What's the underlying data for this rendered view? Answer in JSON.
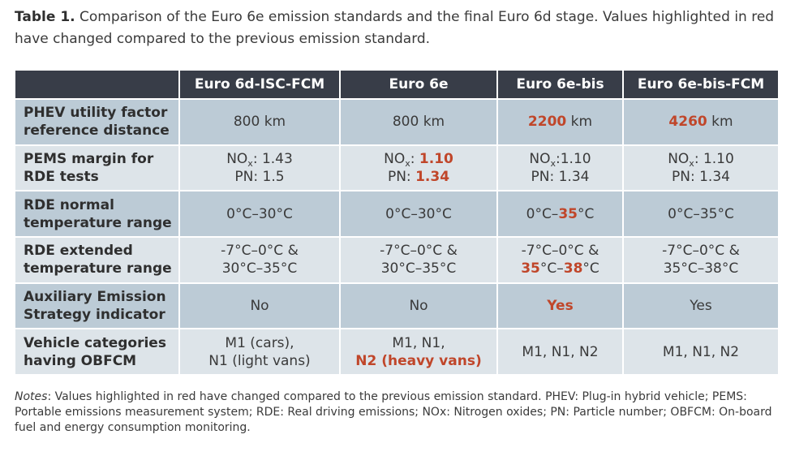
{
  "caption": {
    "label": "Table 1.",
    "text": " Comparison of the Euro 6e emission standards and the final Euro 6d stage. Values highlighted in red have changed compared to the previous emission standard."
  },
  "table": {
    "headers": [
      "",
      "Euro 6d-ISC-FCM",
      "Euro 6e",
      "Euro 6e-bis",
      "Euro 6e-bis-FCM"
    ],
    "rows": {
      "utility": {
        "label_line1": "PHEV utility factor",
        "label_line2": "reference distance",
        "c1": "800 km",
        "c2": "800 km",
        "c3_red": "2200",
        "c3_rest": " km",
        "c4_red": "4260",
        "c4_rest": " km"
      },
      "pems": {
        "label_line1": "PEMS margin for",
        "label_line2": "RDE tests",
        "nox_prefix": "NO",
        "nox_sub": "x",
        "c1_nox": ": 1.43",
        "c1_pn": "PN: 1.5",
        "c2_nox_sep": ": ",
        "c2_nox_red": "1.10",
        "c2_pn_label": "PN: ",
        "c2_pn_red": "1.34",
        "c3_nox": ":1.10",
        "c3_pn": "PN: 1.34",
        "c4_nox": ": 1.10",
        "c4_pn": "PN: 1.34"
      },
      "normal_temp": {
        "label_line1": "RDE normal",
        "label_line2": "temperature range",
        "c1": "0°C–30°C",
        "c2": "0°C–30°C",
        "c3_pre": "0°C–",
        "c3_red": "35",
        "c3_post": "°C",
        "c4": "0°C–35°C"
      },
      "extended_temp": {
        "label_line1": "RDE extended",
        "label_line2": "temperature range",
        "c1_line1": "-7°C–0°C &",
        "c1_line2": "30°C–35°C",
        "c2_line1": "-7°C–0°C &",
        "c2_line2": "30°C–35°C",
        "c3_line1": "-7°C–0°C &",
        "c3_red1": "35",
        "c3_mid": "°C–",
        "c3_red2": "38",
        "c3_post": "°C",
        "c4_line1": "-7°C–0°C &",
        "c4_line2": "35°C–38°C"
      },
      "aes": {
        "label_line1": "Auxiliary Emission",
        "label_line2": "Strategy indicator",
        "c1": "No",
        "c2": "No",
        "c3_red": "Yes",
        "c4": "Yes"
      },
      "obfcm": {
        "label_line1": "Vehicle categories",
        "label_line2": "having OBFCM",
        "c1_line1": "M1 (cars),",
        "c1_line2": "N1 (light vans)",
        "c2_line1": "M1, N1,",
        "c2_red": "N2 (heavy vans)",
        "c3": "M1, N1, N2",
        "c4": "M1, N1, N2"
      }
    }
  },
  "notes": {
    "label": "Notes",
    "text": ": Values highlighted in red have changed compared to the previous emission standard. PHEV: Plug-in hybrid vehicle; PEMS: Portable emissions measurement system; RDE: Real driving emissions; NOx: Nitrogen oxides; PN: Particle number; OBFCM: On-board fuel and energy consumption monitoring."
  },
  "colors": {
    "header_bg": "#383d48",
    "row_dark": "#bccbd6",
    "row_light": "#dde4e9",
    "highlight_red": "#c0462a"
  }
}
